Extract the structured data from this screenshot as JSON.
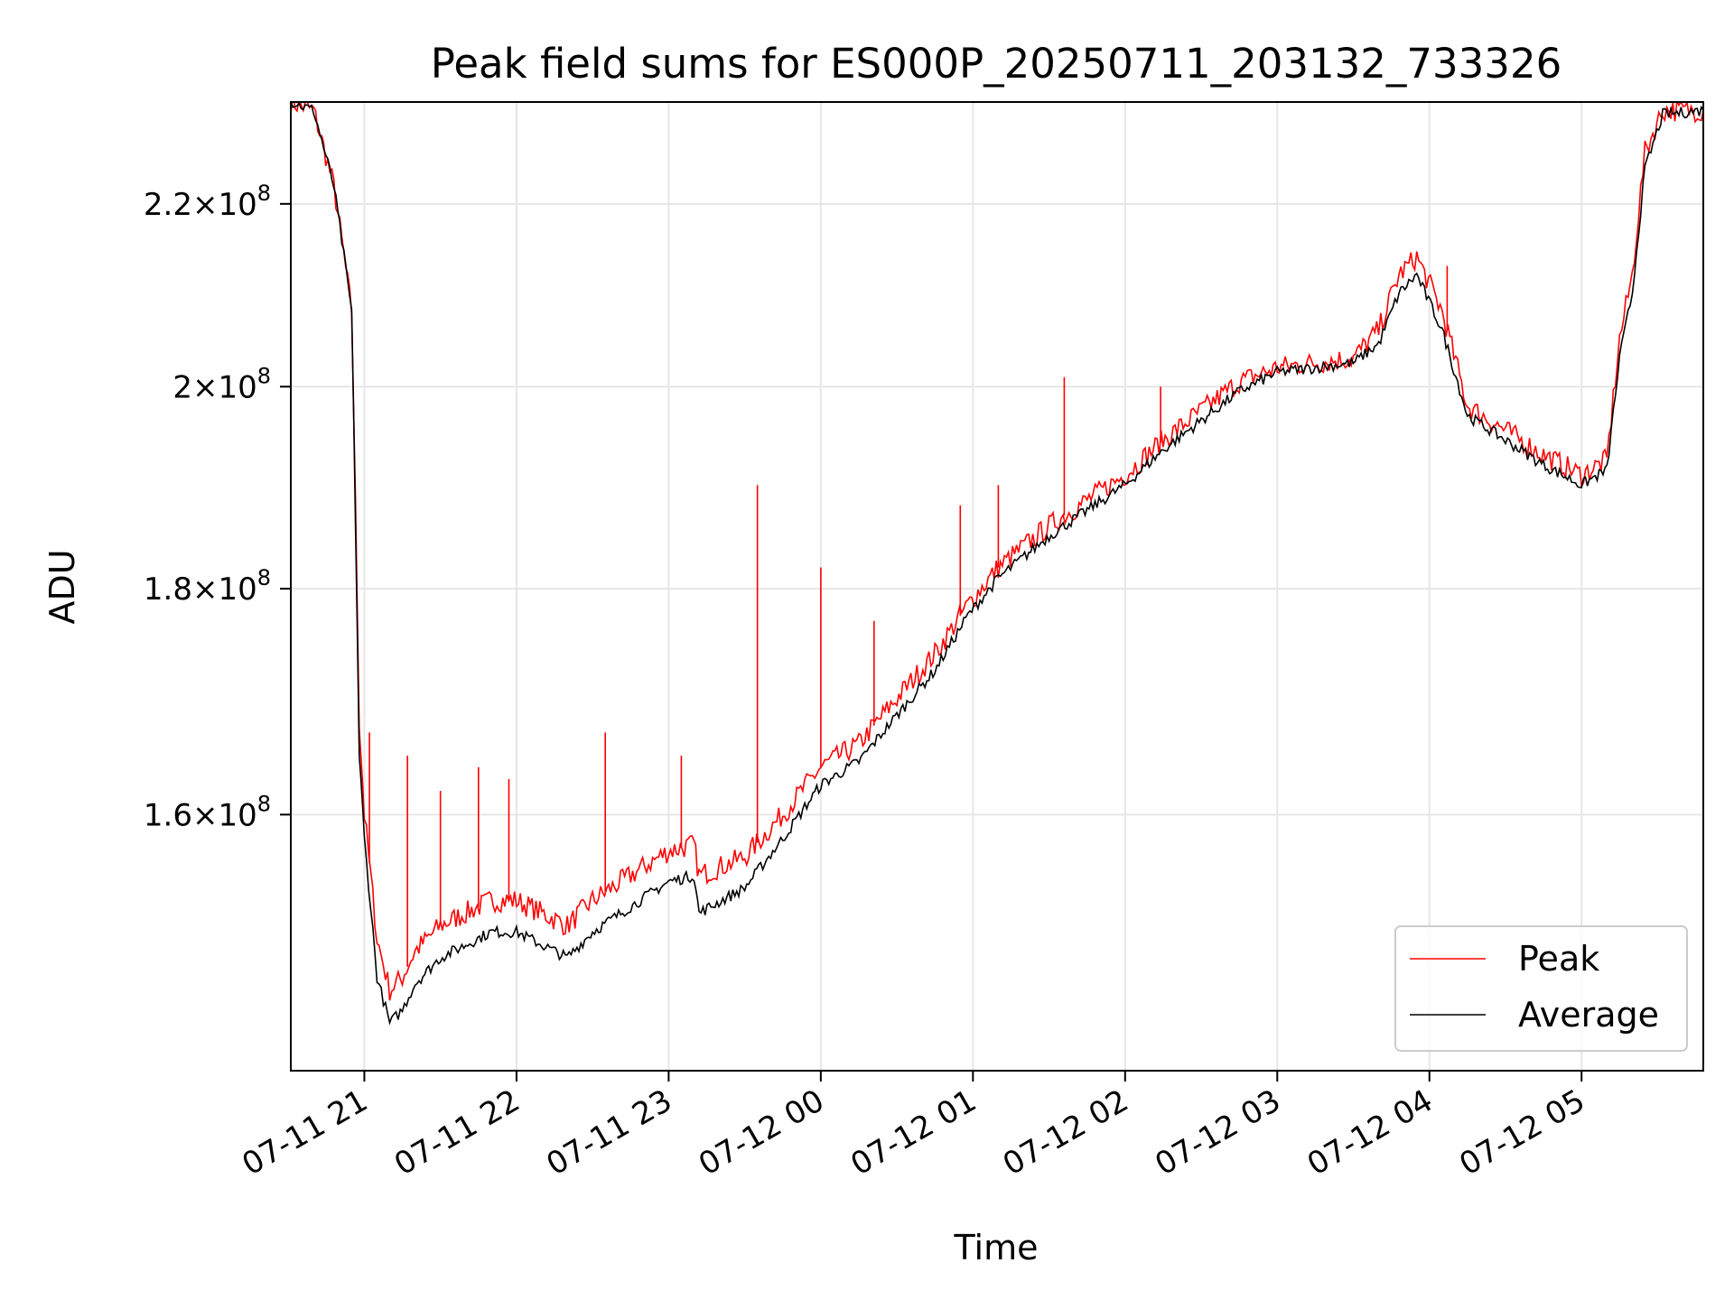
{
  "chart_data": {
    "type": "line",
    "title": "Peak field sums for ES000P_20250711_203132_733326",
    "xlabel": "Time",
    "ylabel": "ADU",
    "yscale": "log",
    "xlim": [
      "2025-07-11 20:31",
      "2025-07-12 05:48"
    ],
    "ylim": [
      140000000,
      232000000
    ],
    "grid": true,
    "legend_position": "lower right",
    "x_ticks": [
      {
        "value": "2025-07-11 21:00",
        "label": "07-11 21"
      },
      {
        "value": "2025-07-11 22:00",
        "label": "07-11 22"
      },
      {
        "value": "2025-07-11 23:00",
        "label": "07-11 23"
      },
      {
        "value": "2025-07-12 00:00",
        "label": "07-12 00"
      },
      {
        "value": "2025-07-12 01:00",
        "label": "07-12 01"
      },
      {
        "value": "2025-07-12 02:00",
        "label": "07-12 02"
      },
      {
        "value": "2025-07-12 03:00",
        "label": "07-12 03"
      },
      {
        "value": "2025-07-12 04:00",
        "label": "07-12 04"
      },
      {
        "value": "2025-07-12 05:00",
        "label": "07-12 05"
      }
    ],
    "y_ticks": [
      {
        "value": 160000000,
        "mantissa": "1.6",
        "times": "×",
        "base": "10",
        "exp": "8"
      },
      {
        "value": 180000000,
        "mantissa": "1.8",
        "times": "×",
        "base": "10",
        "exp": "8"
      },
      {
        "value": 200000000,
        "mantissa": "2",
        "times": "×",
        "base": "10",
        "exp": "8"
      },
      {
        "value": 220000000,
        "mantissa": "2.2",
        "times": "×",
        "base": "10",
        "exp": "8"
      }
    ],
    "series": [
      {
        "name": "Peak",
        "color": "#ff0000",
        "points": [
          [
            "2025-07-11 20:31",
            232000000
          ],
          [
            "2025-07-11 20:40",
            231000000
          ],
          [
            "2025-07-11 20:48",
            222000000
          ],
          [
            "2025-07-11 20:55",
            208000000
          ],
          [
            "2025-07-11 20:58",
            168000000
          ],
          [
            "2025-07-11 21:00",
            160000000
          ],
          [
            "2025-07-11 21:05",
            150000000
          ],
          [
            "2025-07-11 21:10",
            146000000
          ],
          [
            "2025-07-11 21:15",
            147000000
          ],
          [
            "2025-07-11 21:20",
            149000000
          ],
          [
            "2025-07-11 21:30",
            151000000
          ],
          [
            "2025-07-11 21:40",
            152000000
          ],
          [
            "2025-07-11 21:50",
            153000000
          ],
          [
            "2025-07-11 22:00",
            153000000
          ],
          [
            "2025-07-11 22:10",
            152000000
          ],
          [
            "2025-07-11 22:20",
            151000000
          ],
          [
            "2025-07-11 22:30",
            153000000
          ],
          [
            "2025-07-11 22:45",
            155000000
          ],
          [
            "2025-07-11 23:00",
            157000000
          ],
          [
            "2025-07-11 23:10",
            157500000
          ],
          [
            "2025-07-11 23:12",
            155000000
          ],
          [
            "2025-07-11 23:30",
            156500000
          ],
          [
            "2025-07-11 23:45",
            160000000
          ],
          [
            "2025-07-12 00:00",
            164000000
          ],
          [
            "2025-07-12 00:15",
            166000000
          ],
          [
            "2025-07-12 00:30",
            170000000
          ],
          [
            "2025-07-12 00:45",
            174000000
          ],
          [
            "2025-07-12 00:58",
            178500000
          ],
          [
            "2025-07-12 01:10",
            182000000
          ],
          [
            "2025-07-12 01:30",
            186000000
          ],
          [
            "2025-07-12 01:45",
            188500000
          ],
          [
            "2025-07-12 02:00",
            191000000
          ],
          [
            "2025-07-12 02:15",
            194500000
          ],
          [
            "2025-07-12 02:30",
            197500000
          ],
          [
            "2025-07-12 02:45",
            200500000
          ],
          [
            "2025-07-12 03:00",
            202000000
          ],
          [
            "2025-07-12 03:15",
            202500000
          ],
          [
            "2025-07-12 03:30",
            203000000
          ],
          [
            "2025-07-12 03:40",
            206000000
          ],
          [
            "2025-07-12 03:48",
            212000000
          ],
          [
            "2025-07-12 03:55",
            214000000
          ],
          [
            "2025-07-12 04:05",
            208000000
          ],
          [
            "2025-07-12 04:15",
            198000000
          ],
          [
            "2025-07-12 04:30",
            195500000
          ],
          [
            "2025-07-12 04:45",
            193000000
          ],
          [
            "2025-07-12 05:00",
            191000000
          ],
          [
            "2025-07-12 05:10",
            192500000
          ],
          [
            "2025-07-12 05:15",
            205000000
          ],
          [
            "2025-07-12 05:20",
            212000000
          ],
          [
            "2025-07-12 05:25",
            226000000
          ],
          [
            "2025-07-12 05:32",
            231000000
          ],
          [
            "2025-07-12 05:48",
            231000000
          ]
        ]
      },
      {
        "name": "Average",
        "color": "#000000",
        "points": [
          [
            "2025-07-11 20:31",
            232000000
          ],
          [
            "2025-07-11 20:40",
            231000000
          ],
          [
            "2025-07-11 20:48",
            222000000
          ],
          [
            "2025-07-11 20:55",
            208000000
          ],
          [
            "2025-07-11 20:58",
            165000000
          ],
          [
            "2025-07-11 21:00",
            158000000
          ],
          [
            "2025-07-11 21:05",
            147000000
          ],
          [
            "2025-07-11 21:10",
            143500000
          ],
          [
            "2025-07-11 21:15",
            144500000
          ],
          [
            "2025-07-11 21:20",
            146500000
          ],
          [
            "2025-07-11 21:30",
            148500000
          ],
          [
            "2025-07-11 21:40",
            149500000
          ],
          [
            "2025-07-11 21:50",
            150500000
          ],
          [
            "2025-07-11 22:00",
            150500000
          ],
          [
            "2025-07-11 22:10",
            149500000
          ],
          [
            "2025-07-11 22:20",
            148500000
          ],
          [
            "2025-07-11 22:30",
            150500000
          ],
          [
            "2025-07-11 22:45",
            152500000
          ],
          [
            "2025-07-11 23:00",
            154500000
          ],
          [
            "2025-07-11 23:10",
            155000000
          ],
          [
            "2025-07-11 23:12",
            152000000
          ],
          [
            "2025-07-11 23:30",
            154000000
          ],
          [
            "2025-07-11 23:45",
            158000000
          ],
          [
            "2025-07-12 00:00",
            162500000
          ],
          [
            "2025-07-12 00:15",
            164500000
          ],
          [
            "2025-07-12 00:30",
            168500000
          ],
          [
            "2025-07-12 00:45",
            172500000
          ],
          [
            "2025-07-12 00:58",
            177500000
          ],
          [
            "2025-07-12 01:10",
            181000000
          ],
          [
            "2025-07-12 01:30",
            185000000
          ],
          [
            "2025-07-12 01:45",
            187500000
          ],
          [
            "2025-07-12 02:00",
            190000000
          ],
          [
            "2025-07-12 02:15",
            193500000
          ],
          [
            "2025-07-12 02:30",
            196500000
          ],
          [
            "2025-07-12 02:45",
            199500000
          ],
          [
            "2025-07-12 03:00",
            201500000
          ],
          [
            "2025-07-12 03:15",
            202000000
          ],
          [
            "2025-07-12 03:30",
            202500000
          ],
          [
            "2025-07-12 03:40",
            204500000
          ],
          [
            "2025-07-12 03:48",
            210000000
          ],
          [
            "2025-07-12 03:55",
            212000000
          ],
          [
            "2025-07-12 04:05",
            206000000
          ],
          [
            "2025-07-12 04:15",
            197000000
          ],
          [
            "2025-07-12 04:30",
            194500000
          ],
          [
            "2025-07-12 04:45",
            192000000
          ],
          [
            "2025-07-12 05:00",
            190000000
          ],
          [
            "2025-07-12 05:10",
            191500000
          ],
          [
            "2025-07-12 05:15",
            203000000
          ],
          [
            "2025-07-12 05:20",
            210000000
          ],
          [
            "2025-07-12 05:25",
            224000000
          ],
          [
            "2025-07-12 05:32",
            230500000
          ],
          [
            "2025-07-12 05:48",
            231000000
          ]
        ]
      }
    ],
    "spikes": [
      [
        "2025-07-11 21:02",
        167000000
      ],
      [
        "2025-07-11 21:17",
        165000000
      ],
      [
        "2025-07-11 21:30",
        162000000
      ],
      [
        "2025-07-11 21:45",
        164000000
      ],
      [
        "2025-07-11 21:57",
        163000000
      ],
      [
        "2025-07-11 22:35",
        167000000
      ],
      [
        "2025-07-11 23:05",
        165000000
      ],
      [
        "2025-07-11 23:35",
        190000000
      ],
      [
        "2025-07-12 00:00",
        182000000
      ],
      [
        "2025-07-12 00:21",
        177000000
      ],
      [
        "2025-07-12 00:55",
        188000000
      ],
      [
        "2025-07-12 01:10",
        190000000
      ],
      [
        "2025-07-12 01:36",
        201000000
      ],
      [
        "2025-07-12 02:14",
        200000000
      ],
      [
        "2025-07-12 03:55",
        214000000
      ],
      [
        "2025-07-12 04:07",
        213000000
      ]
    ]
  }
}
